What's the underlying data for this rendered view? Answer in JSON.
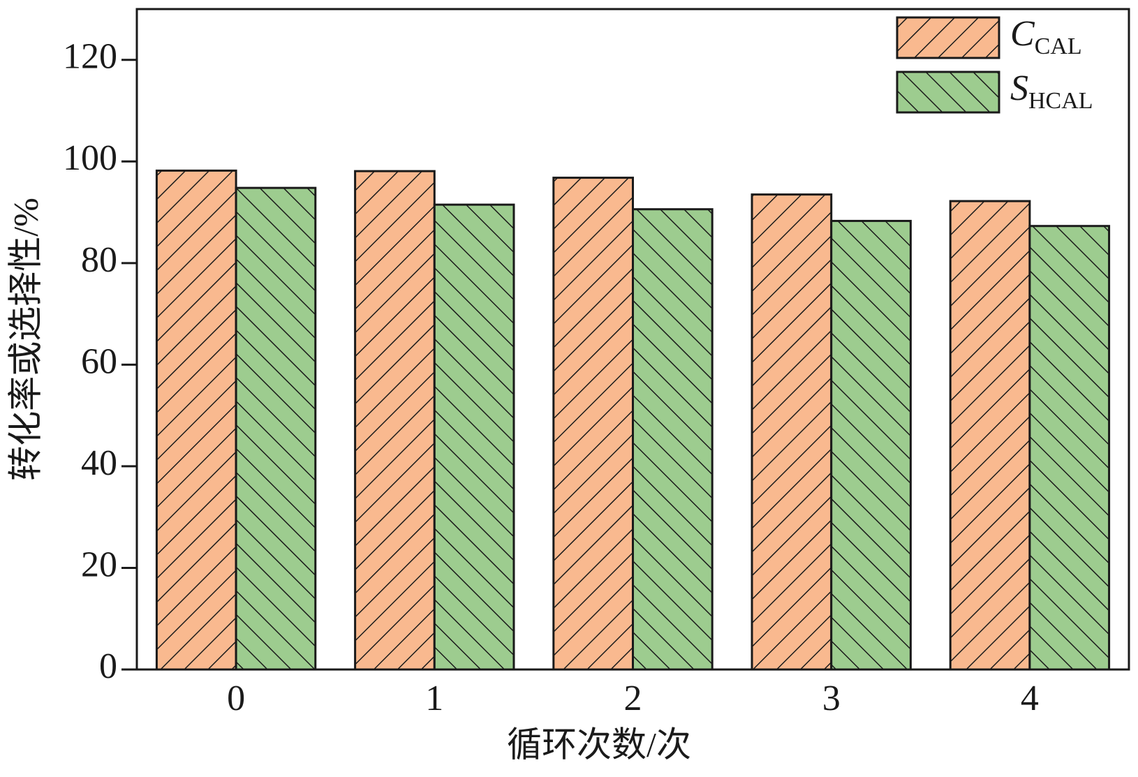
{
  "chart_data": {
    "type": "bar",
    "x_label": "循环次数/次",
    "y_label": "转化率或选择性/%",
    "categories": [
      "0",
      "1",
      "2",
      "3",
      "4"
    ],
    "series": [
      {
        "name": "C",
        "subscript": "CAL",
        "color": "#f9b98f",
        "hatch": "/",
        "values": [
          98.2,
          98.1,
          96.8,
          93.5,
          92.2
        ]
      },
      {
        "name": "S",
        "subscript": "HCAL",
        "color": "#9dcc8f",
        "hatch": "\\",
        "values": [
          94.8,
          91.5,
          90.6,
          88.3,
          87.3
        ]
      }
    ],
    "ylim": [
      0,
      130
    ],
    "yticks": [
      0,
      20,
      40,
      60,
      80,
      100,
      120
    ],
    "legend": "upper right"
  }
}
